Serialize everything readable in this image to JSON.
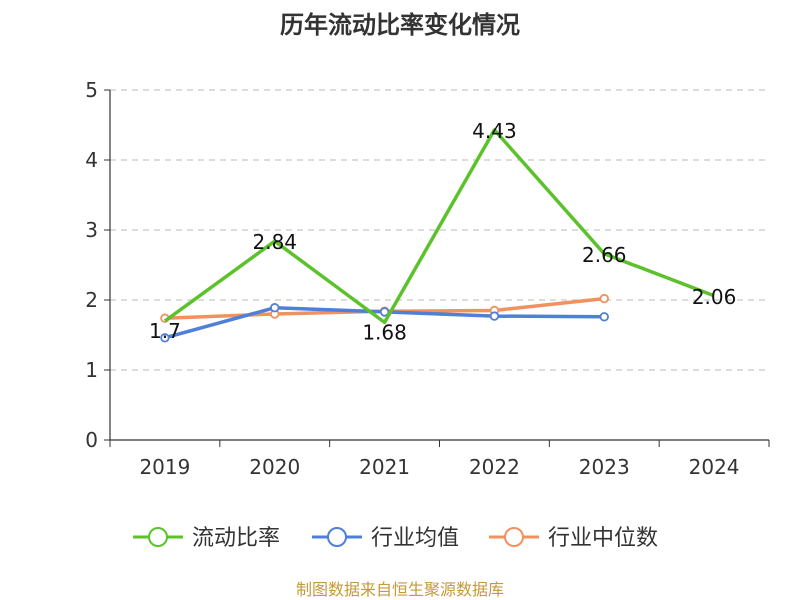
{
  "chart_data": {
    "type": "line",
    "title": "历年流动比率变化情况",
    "categories": [
      "2019",
      "2020",
      "2021",
      "2022",
      "2023",
      "2024"
    ],
    "series": [
      {
        "name": "流动比率",
        "values": [
          1.7,
          2.84,
          1.68,
          4.43,
          2.66,
          2.06
        ],
        "color": "#5cc22b",
        "labels": [
          "1.7",
          "2.84",
          "1.68",
          "4.43",
          "2.66",
          "2.06"
        ]
      },
      {
        "name": "行业均值",
        "values": [
          1.46,
          1.89,
          1.83,
          1.77,
          1.76,
          null
        ],
        "color": "#4f7fd8"
      },
      {
        "name": "行业中位数",
        "values": [
          1.74,
          1.8,
          1.84,
          1.85,
          2.02,
          null
        ],
        "color": "#f0915f"
      }
    ],
    "yticks": [
      "0",
      "1",
      "2",
      "3",
      "4",
      "5"
    ],
    "ylim": [
      0,
      5
    ],
    "grid": true,
    "legend": "bottom"
  },
  "source": "制图数据来自恒生聚源数据库"
}
